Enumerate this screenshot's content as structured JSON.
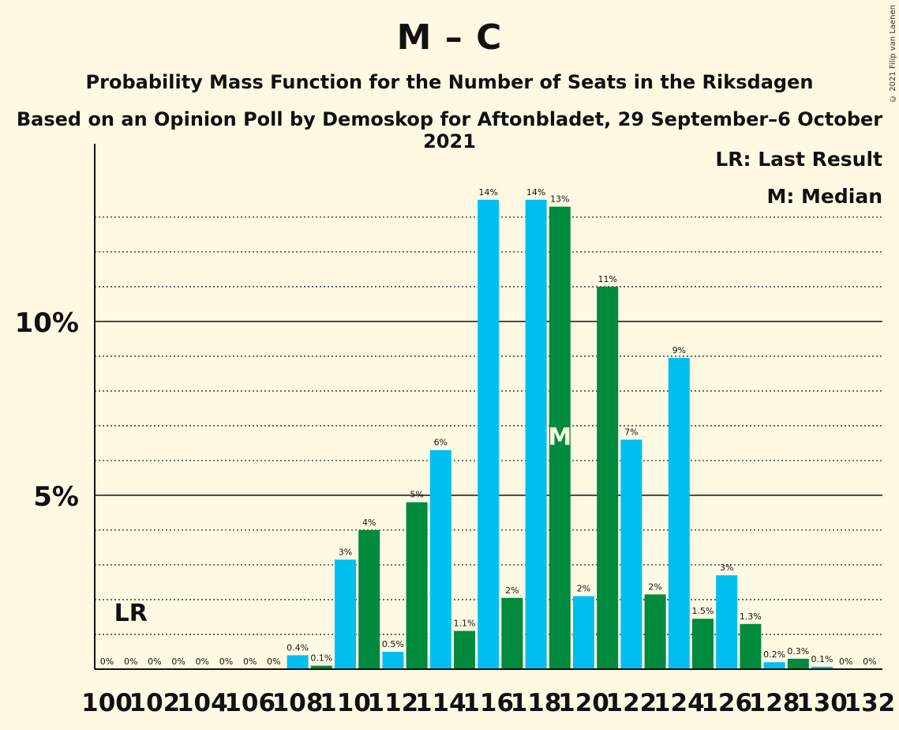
{
  "title": "M – C",
  "subtitle": "Probability Mass Function for the Number of Seats in the Riksdagen",
  "subtitle2": "Based on an Opinion Poll by Demoskop for Aftonbladet, 29 September–6 October 2021",
  "copyright": "© 2021 Filip van Laenen",
  "legend": {
    "last_result": "LR: Last Result",
    "median": "M: Median"
  },
  "colors": {
    "background": "#FFF9E3",
    "bar_blue": "#00BFF0",
    "bar_green": "#008A3E",
    "text": "#111111"
  },
  "chart_data": {
    "type": "bar",
    "x": [
      100,
      101,
      102,
      103,
      104,
      105,
      106,
      107,
      108,
      109,
      110,
      111,
      112,
      113,
      114,
      115,
      116,
      117,
      118,
      119,
      120,
      121,
      122,
      123,
      124,
      125,
      126,
      127,
      128,
      129,
      130,
      131,
      132
    ],
    "values": [
      0,
      0,
      0,
      0,
      0,
      0,
      0,
      0,
      0.4,
      0.1,
      3.15,
      4.0,
      0.5,
      4.8,
      6.3,
      1.1,
      13.5,
      2.05,
      13.5,
      13.3,
      2.1,
      11.0,
      6.6,
      2.15,
      8.95,
      1.45,
      2.7,
      1.3,
      0.2,
      0.3,
      0.07,
      0,
      0
    ],
    "labels": [
      "0%",
      "0%",
      "0%",
      "0%",
      "0%",
      "0%",
      "0%",
      "0%",
      "0.4%",
      "0.1%",
      "3%",
      "4%",
      "0.5%",
      "5%",
      "6%",
      "1.1%",
      "14%",
      "2%",
      "14%",
      "13%",
      "2%",
      "11%",
      "7%",
      "2%",
      "9%",
      "1.5%",
      "3%",
      "1.3%",
      "0.2%",
      "0.3%",
      "0.1%",
      "0%",
      "0%"
    ],
    "x_tick_labels": [
      "100",
      "102",
      "104",
      "106",
      "108",
      "110",
      "112",
      "114",
      "116",
      "118",
      "120",
      "122",
      "124",
      "126",
      "128",
      "130",
      "132"
    ],
    "y_tick_labels": [
      "5%",
      "10%"
    ],
    "y_ticks": [
      5,
      10
    ],
    "ylim": [
      0,
      14.7
    ],
    "last_result": 101,
    "last_result_label": "LR",
    "median": 119,
    "median_label": "M",
    "grid": true
  }
}
